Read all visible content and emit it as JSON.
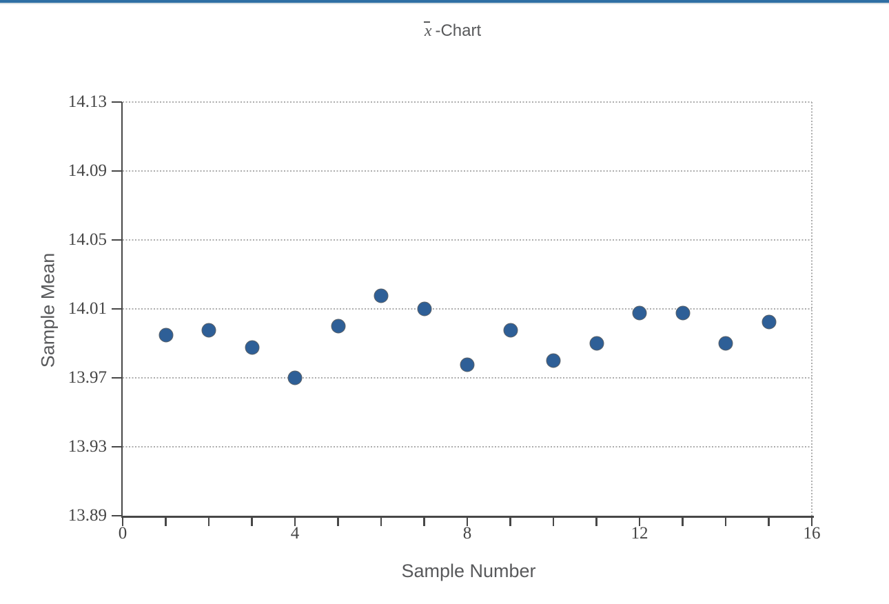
{
  "page": {
    "top_bar_color": "#2f6fa4",
    "top_bar_underline_color": "#d7dfe3",
    "background": "#ffffff"
  },
  "header": {
    "title_symbol": "x",
    "title_suffix": "-Chart"
  },
  "chart_data": {
    "type": "scatter",
    "title": "x̄-Chart",
    "xlabel": "Sample Number",
    "ylabel": "Sample Mean",
    "x": [
      1,
      2,
      3,
      4,
      5,
      6,
      7,
      8,
      9,
      10,
      11,
      12,
      13,
      14,
      15
    ],
    "values": [
      13.995,
      13.9975,
      13.9875,
      13.97,
      14.0,
      14.0175,
      14.01,
      13.9775,
      13.9975,
      13.98,
      13.99,
      14.0075,
      14.0075,
      13.99,
      14.0025
    ],
    "xlim": [
      0,
      16
    ],
    "ylim": [
      13.89,
      14.13
    ],
    "xticks": [
      0,
      4,
      8,
      12,
      16
    ],
    "xminor_step": 1,
    "ytick_labels": [
      "13.89",
      "13.93",
      "13.97",
      "14.01",
      "14.05",
      "14.09",
      "14.13"
    ],
    "grid": "horizontal-dotted-plus-right-edge",
    "legend": "none",
    "point_color": "#2e5f97",
    "point_edge_color": "#5c6166",
    "axis_color": "#474747",
    "grid_color": "#ababab",
    "label_color": "#58595b",
    "tick_label_color": "#454545"
  }
}
